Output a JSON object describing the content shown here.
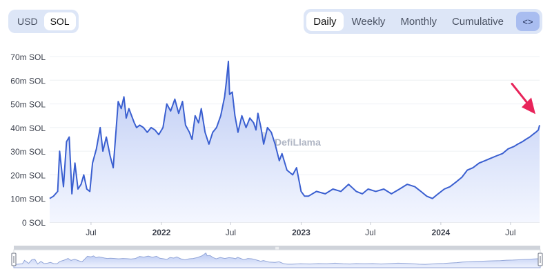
{
  "currency_toggle": {
    "options": [
      "USD",
      "SOL"
    ],
    "active": "SOL"
  },
  "period_toggle": {
    "options": [
      "Daily",
      "Weekly",
      "Monthly",
      "Cumulative"
    ],
    "active": "Daily",
    "embed_label": "<>"
  },
  "watermark": "DefiLlama",
  "colors": {
    "line": "#3a5fd0",
    "area_top": "#b9c8f3",
    "area_bottom": "#f4f7ff",
    "arrow": "#e8245a"
  },
  "chart_data": {
    "type": "area",
    "title": "",
    "xlabel": "",
    "ylabel": "",
    "y_unit": "SOL",
    "ylim": [
      0,
      70
    ],
    "yticks": [
      "0 SOL",
      "10m SOL",
      "20m SOL",
      "30m SOL",
      "40m SOL",
      "50m SOL",
      "60m SOL",
      "70m SOL"
    ],
    "xticks": [
      {
        "date": "2021-07-01",
        "label": "Jul",
        "bold": false
      },
      {
        "date": "2022-01-01",
        "label": "2022",
        "bold": true
      },
      {
        "date": "2022-07-01",
        "label": "Jul",
        "bold": false
      },
      {
        "date": "2023-01-01",
        "label": "2023",
        "bold": true
      },
      {
        "date": "2023-07-01",
        "label": "Jul",
        "bold": false
      },
      {
        "date": "2024-01-01",
        "label": "2024",
        "bold": true
      },
      {
        "date": "2024-07-01",
        "label": "Jul",
        "bold": false
      }
    ],
    "x_range": [
      "2021-03-15",
      "2024-09-15"
    ],
    "grid": true,
    "legend": "none",
    "series": [
      {
        "name": "",
        "x": [
          "2021-03-15",
          "2021-03-25",
          "2021-04-05",
          "2021-04-10",
          "2021-04-20",
          "2021-04-28",
          "2021-05-05",
          "2021-05-12",
          "2021-05-20",
          "2021-05-28",
          "2021-06-05",
          "2021-06-12",
          "2021-06-20",
          "2021-06-28",
          "2021-07-05",
          "2021-07-15",
          "2021-07-25",
          "2021-08-01",
          "2021-08-10",
          "2021-08-20",
          "2021-08-28",
          "2021-09-05",
          "2021-09-10",
          "2021-09-18",
          "2021-09-25",
          "2021-10-01",
          "2021-10-08",
          "2021-10-15",
          "2021-10-22",
          "2021-10-28",
          "2021-11-05",
          "2021-11-15",
          "2021-11-25",
          "2021-12-05",
          "2021-12-15",
          "2021-12-25",
          "2022-01-05",
          "2022-01-15",
          "2022-01-25",
          "2022-02-05",
          "2022-02-15",
          "2022-02-25",
          "2022-03-05",
          "2022-03-15",
          "2022-03-22",
          "2022-03-30",
          "2022-04-08",
          "2022-04-15",
          "2022-04-25",
          "2022-05-05",
          "2022-05-15",
          "2022-05-25",
          "2022-06-05",
          "2022-06-15",
          "2022-06-20",
          "2022-06-25",
          "2022-06-28",
          "2022-07-05",
          "2022-07-12",
          "2022-07-20",
          "2022-07-30",
          "2022-08-10",
          "2022-08-20",
          "2022-08-30",
          "2022-09-05",
          "2022-09-10",
          "2022-09-18",
          "2022-09-25",
          "2022-10-05",
          "2022-10-15",
          "2022-10-25",
          "2022-11-05",
          "2022-11-12",
          "2022-11-25",
          "2022-12-10",
          "2022-12-20",
          "2023-01-01",
          "2023-01-10",
          "2023-01-20",
          "2023-02-10",
          "2023-03-05",
          "2023-03-25",
          "2023-04-15",
          "2023-05-05",
          "2023-05-25",
          "2023-06-10",
          "2023-06-25",
          "2023-07-15",
          "2023-08-05",
          "2023-08-25",
          "2023-09-15",
          "2023-10-05",
          "2023-10-25",
          "2023-11-10",
          "2023-11-25",
          "2023-12-10",
          "2023-12-25",
          "2024-01-10",
          "2024-01-25",
          "2024-02-10",
          "2024-02-25",
          "2024-03-10",
          "2024-03-25",
          "2024-04-10",
          "2024-04-25",
          "2024-05-10",
          "2024-05-25",
          "2024-06-10",
          "2024-06-25",
          "2024-07-10",
          "2024-07-20",
          "2024-08-01",
          "2024-08-10",
          "2024-08-20",
          "2024-08-28",
          "2024-09-05",
          "2024-09-12",
          "2024-09-15"
        ],
        "values": [
          10,
          11,
          13,
          30,
          15,
          34,
          36,
          12,
          25,
          14,
          16,
          20,
          14,
          13,
          25,
          31,
          40,
          30,
          36,
          28,
          23,
          40,
          51,
          48,
          53,
          44,
          48,
          45,
          42,
          40,
          41,
          40,
          38,
          40,
          39,
          37,
          40,
          50,
          47,
          52,
          46,
          51,
          41,
          38,
          35,
          45,
          42,
          48,
          38,
          33,
          38,
          40,
          45,
          53,
          60,
          68,
          54,
          55,
          45,
          38,
          45,
          40,
          44,
          42,
          39,
          46,
          40,
          33,
          40,
          38,
          33,
          26,
          29,
          22,
          20,
          23,
          13,
          11,
          11,
          13,
          12,
          14,
          13,
          16,
          13,
          12,
          14,
          13,
          14,
          12,
          14,
          16,
          15,
          13,
          11,
          10,
          12,
          14,
          15,
          17,
          19,
          22,
          23,
          25,
          26,
          27,
          28,
          29,
          31,
          32,
          33,
          34,
          35,
          36,
          37,
          38,
          39,
          41
        ]
      }
    ],
    "annotations": [
      {
        "type": "arrow",
        "target": "2024-09-15",
        "color": "#e8245a"
      }
    ]
  }
}
